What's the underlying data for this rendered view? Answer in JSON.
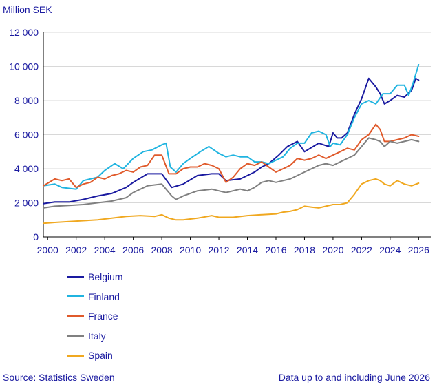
{
  "chart_data": {
    "type": "line",
    "title": "",
    "ylabel": "Million SEK",
    "xlabel": "",
    "xlim": [
      1999.7,
      2026.9
    ],
    "ylim": [
      0,
      12000
    ],
    "yticks": [
      0,
      2000,
      4000,
      6000,
      8000,
      10000,
      12000
    ],
    "ytick_labels": [
      "0",
      "2 000",
      "4 000",
      "6 000",
      "8 000",
      "10 000",
      "12 000"
    ],
    "xticks": [
      2000,
      2002,
      2004,
      2006,
      2008,
      2010,
      2012,
      2014,
      2016,
      2018,
      2020,
      2022,
      2024,
      2026
    ],
    "xtick_labels": [
      "2000",
      "2002",
      "2004",
      "2006",
      "2008",
      "2010",
      "2012",
      "2014",
      "2016",
      "2018",
      "2020",
      "2022",
      "2024",
      "2026"
    ],
    "grid": "horizontal",
    "legend": "below",
    "series": [
      {
        "name": "Belgium",
        "color": "#1a1aa0",
        "x": [
          1999.7,
          2000.5,
          2001.5,
          2002.5,
          2003.5,
          2004.5,
          2005.5,
          2006.0,
          2007.0,
          2008.0,
          2008.7,
          2009.5,
          2010.5,
          2011.5,
          2012.0,
          2012.5,
          2013.5,
          2014.5,
          2015.0,
          2015.5,
          2016.2,
          2016.8,
          2017.5,
          2018.0,
          2019.0,
          2019.7,
          2020.0,
          2020.3,
          2020.6,
          2021.0,
          2021.5,
          2022.0,
          2022.5,
          2022.8,
          2023.0,
          2023.3,
          2023.6,
          2024.0,
          2024.5,
          2025.0,
          2025.5,
          2025.8,
          2026.0
        ],
        "y": [
          1950,
          2050,
          2050,
          2200,
          2400,
          2550,
          2900,
          3200,
          3700,
          3700,
          2900,
          3100,
          3600,
          3700,
          3700,
          3300,
          3400,
          3800,
          4100,
          4300,
          4800,
          5300,
          5600,
          5000,
          5500,
          5300,
          6100,
          5800,
          5800,
          6100,
          7200,
          8100,
          9300,
          9000,
          8800,
          8400,
          7800,
          8000,
          8300,
          8200,
          8600,
          9300,
          9200
        ]
      },
      {
        "name": "Finland",
        "color": "#20b4e0",
        "x": [
          1999.7,
          2000.5,
          2001.0,
          2002.0,
          2002.5,
          2003.5,
          2004.0,
          2004.7,
          2005.3,
          2006.0,
          2006.7,
          2007.3,
          2008.0,
          2008.3,
          2008.6,
          2009.0,
          2009.5,
          2010.0,
          2010.7,
          2011.3,
          2012.0,
          2012.5,
          2013.0,
          2013.5,
          2014.0,
          2014.5,
          2015.0,
          2015.5,
          2016.0,
          2016.5,
          2017.0,
          2017.5,
          2018.0,
          2018.5,
          2019.0,
          2019.5,
          2019.8,
          2020.0,
          2020.5,
          2021.0,
          2021.5,
          2022.0,
          2022.5,
          2023.0,
          2023.5,
          2024.0,
          2024.5,
          2025.0,
          2025.3,
          2025.6,
          2026.0
        ],
        "y": [
          3000,
          3100,
          2900,
          2800,
          3300,
          3500,
          3900,
          4300,
          4000,
          4600,
          5000,
          5100,
          5400,
          5500,
          4100,
          3800,
          4300,
          4600,
          5000,
          5300,
          4900,
          4700,
          4800,
          4700,
          4700,
          4400,
          4400,
          4300,
          4500,
          4700,
          5200,
          5500,
          5500,
          6100,
          6200,
          6000,
          5300,
          5500,
          5400,
          6000,
          7000,
          7800,
          8000,
          7800,
          8400,
          8400,
          8900,
          8900,
          8300,
          9000,
          10100
        ]
      },
      {
        "name": "France",
        "color": "#e05a2b",
        "x": [
          1999.7,
          2000.5,
          2001.0,
          2001.5,
          2002.0,
          2002.5,
          2003.0,
          2003.5,
          2004.0,
          2004.5,
          2005.0,
          2005.5,
          2006.0,
          2006.5,
          2007.0,
          2007.5,
          2008.0,
          2008.5,
          2009.0,
          2009.5,
          2010.0,
          2010.5,
          2011.0,
          2011.5,
          2012.0,
          2012.5,
          2013.0,
          2013.5,
          2014.0,
          2014.5,
          2015.0,
          2015.5,
          2016.0,
          2016.5,
          2017.0,
          2017.5,
          2018.0,
          2018.5,
          2019.0,
          2019.5,
          2020.0,
          2020.5,
          2021.0,
          2021.5,
          2022.0,
          2022.5,
          2023.0,
          2023.3,
          2023.6,
          2024.0,
          2024.5,
          2025.0,
          2025.5,
          2026.0
        ],
        "y": [
          3000,
          3400,
          3300,
          3400,
          2900,
          3100,
          3200,
          3500,
          3400,
          3600,
          3700,
          3900,
          3800,
          4100,
          4200,
          4800,
          4800,
          3700,
          3700,
          4000,
          4100,
          4100,
          4300,
          4200,
          4000,
          3200,
          3500,
          4000,
          4300,
          4200,
          4400,
          4100,
          3800,
          4000,
          4200,
          4600,
          4500,
          4600,
          4800,
          4600,
          4800,
          5000,
          5200,
          5100,
          5700,
          6000,
          6600,
          6300,
          5600,
          5600,
          5700,
          5800,
          6000,
          5900
        ]
      },
      {
        "name": "Italy",
        "color": "#808080",
        "x": [
          1999.7,
          2000.5,
          2001.5,
          2002.5,
          2003.5,
          2004.5,
          2005.5,
          2006.0,
          2007.0,
          2008.0,
          2008.7,
          2009.0,
          2009.5,
          2010.5,
          2011.5,
          2012.0,
          2012.5,
          2013.5,
          2014.0,
          2014.5,
          2015.0,
          2015.5,
          2016.0,
          2016.5,
          2017.0,
          2018.0,
          2019.0,
          2019.5,
          2020.0,
          2020.5,
          2021.0,
          2021.5,
          2022.0,
          2022.5,
          2023.0,
          2023.3,
          2023.6,
          2024.0,
          2024.5,
          2025.0,
          2025.5,
          2026.0
        ],
        "y": [
          1700,
          1800,
          1850,
          1900,
          2000,
          2100,
          2300,
          2600,
          3000,
          3100,
          2400,
          2200,
          2400,
          2700,
          2800,
          2700,
          2600,
          2800,
          2700,
          2900,
          3200,
          3300,
          3200,
          3300,
          3400,
          3800,
          4200,
          4300,
          4200,
          4400,
          4600,
          4800,
          5300,
          5800,
          5700,
          5600,
          5300,
          5600,
          5500,
          5600,
          5700,
          5600
        ]
      },
      {
        "name": "Spain",
        "color": "#f0a820",
        "x": [
          1999.7,
          2000.5,
          2001.5,
          2002.5,
          2003.5,
          2004.5,
          2005.5,
          2006.5,
          2007.5,
          2008.0,
          2008.5,
          2009.0,
          2009.5,
          2010.5,
          2011.5,
          2012.0,
          2013.0,
          2014.0,
          2015.0,
          2016.0,
          2016.5,
          2017.0,
          2017.5,
          2018.0,
          2018.5,
          2019.0,
          2019.5,
          2020.0,
          2020.5,
          2021.0,
          2021.5,
          2022.0,
          2022.5,
          2023.0,
          2023.3,
          2023.6,
          2024.0,
          2024.5,
          2025.0,
          2025.5,
          2026.0
        ],
        "y": [
          800,
          850,
          900,
          950,
          1000,
          1100,
          1200,
          1250,
          1200,
          1300,
          1100,
          1000,
          1000,
          1100,
          1250,
          1150,
          1150,
          1250,
          1300,
          1350,
          1450,
          1500,
          1600,
          1800,
          1750,
          1700,
          1800,
          1900,
          1900,
          2000,
          2500,
          3100,
          3300,
          3400,
          3300,
          3100,
          3000,
          3300,
          3100,
          3000,
          3150
        ]
      }
    ],
    "unit_label": "Million SEK",
    "source": "Source: Statistics Sweden",
    "note": "Data up to and including June 2026"
  }
}
